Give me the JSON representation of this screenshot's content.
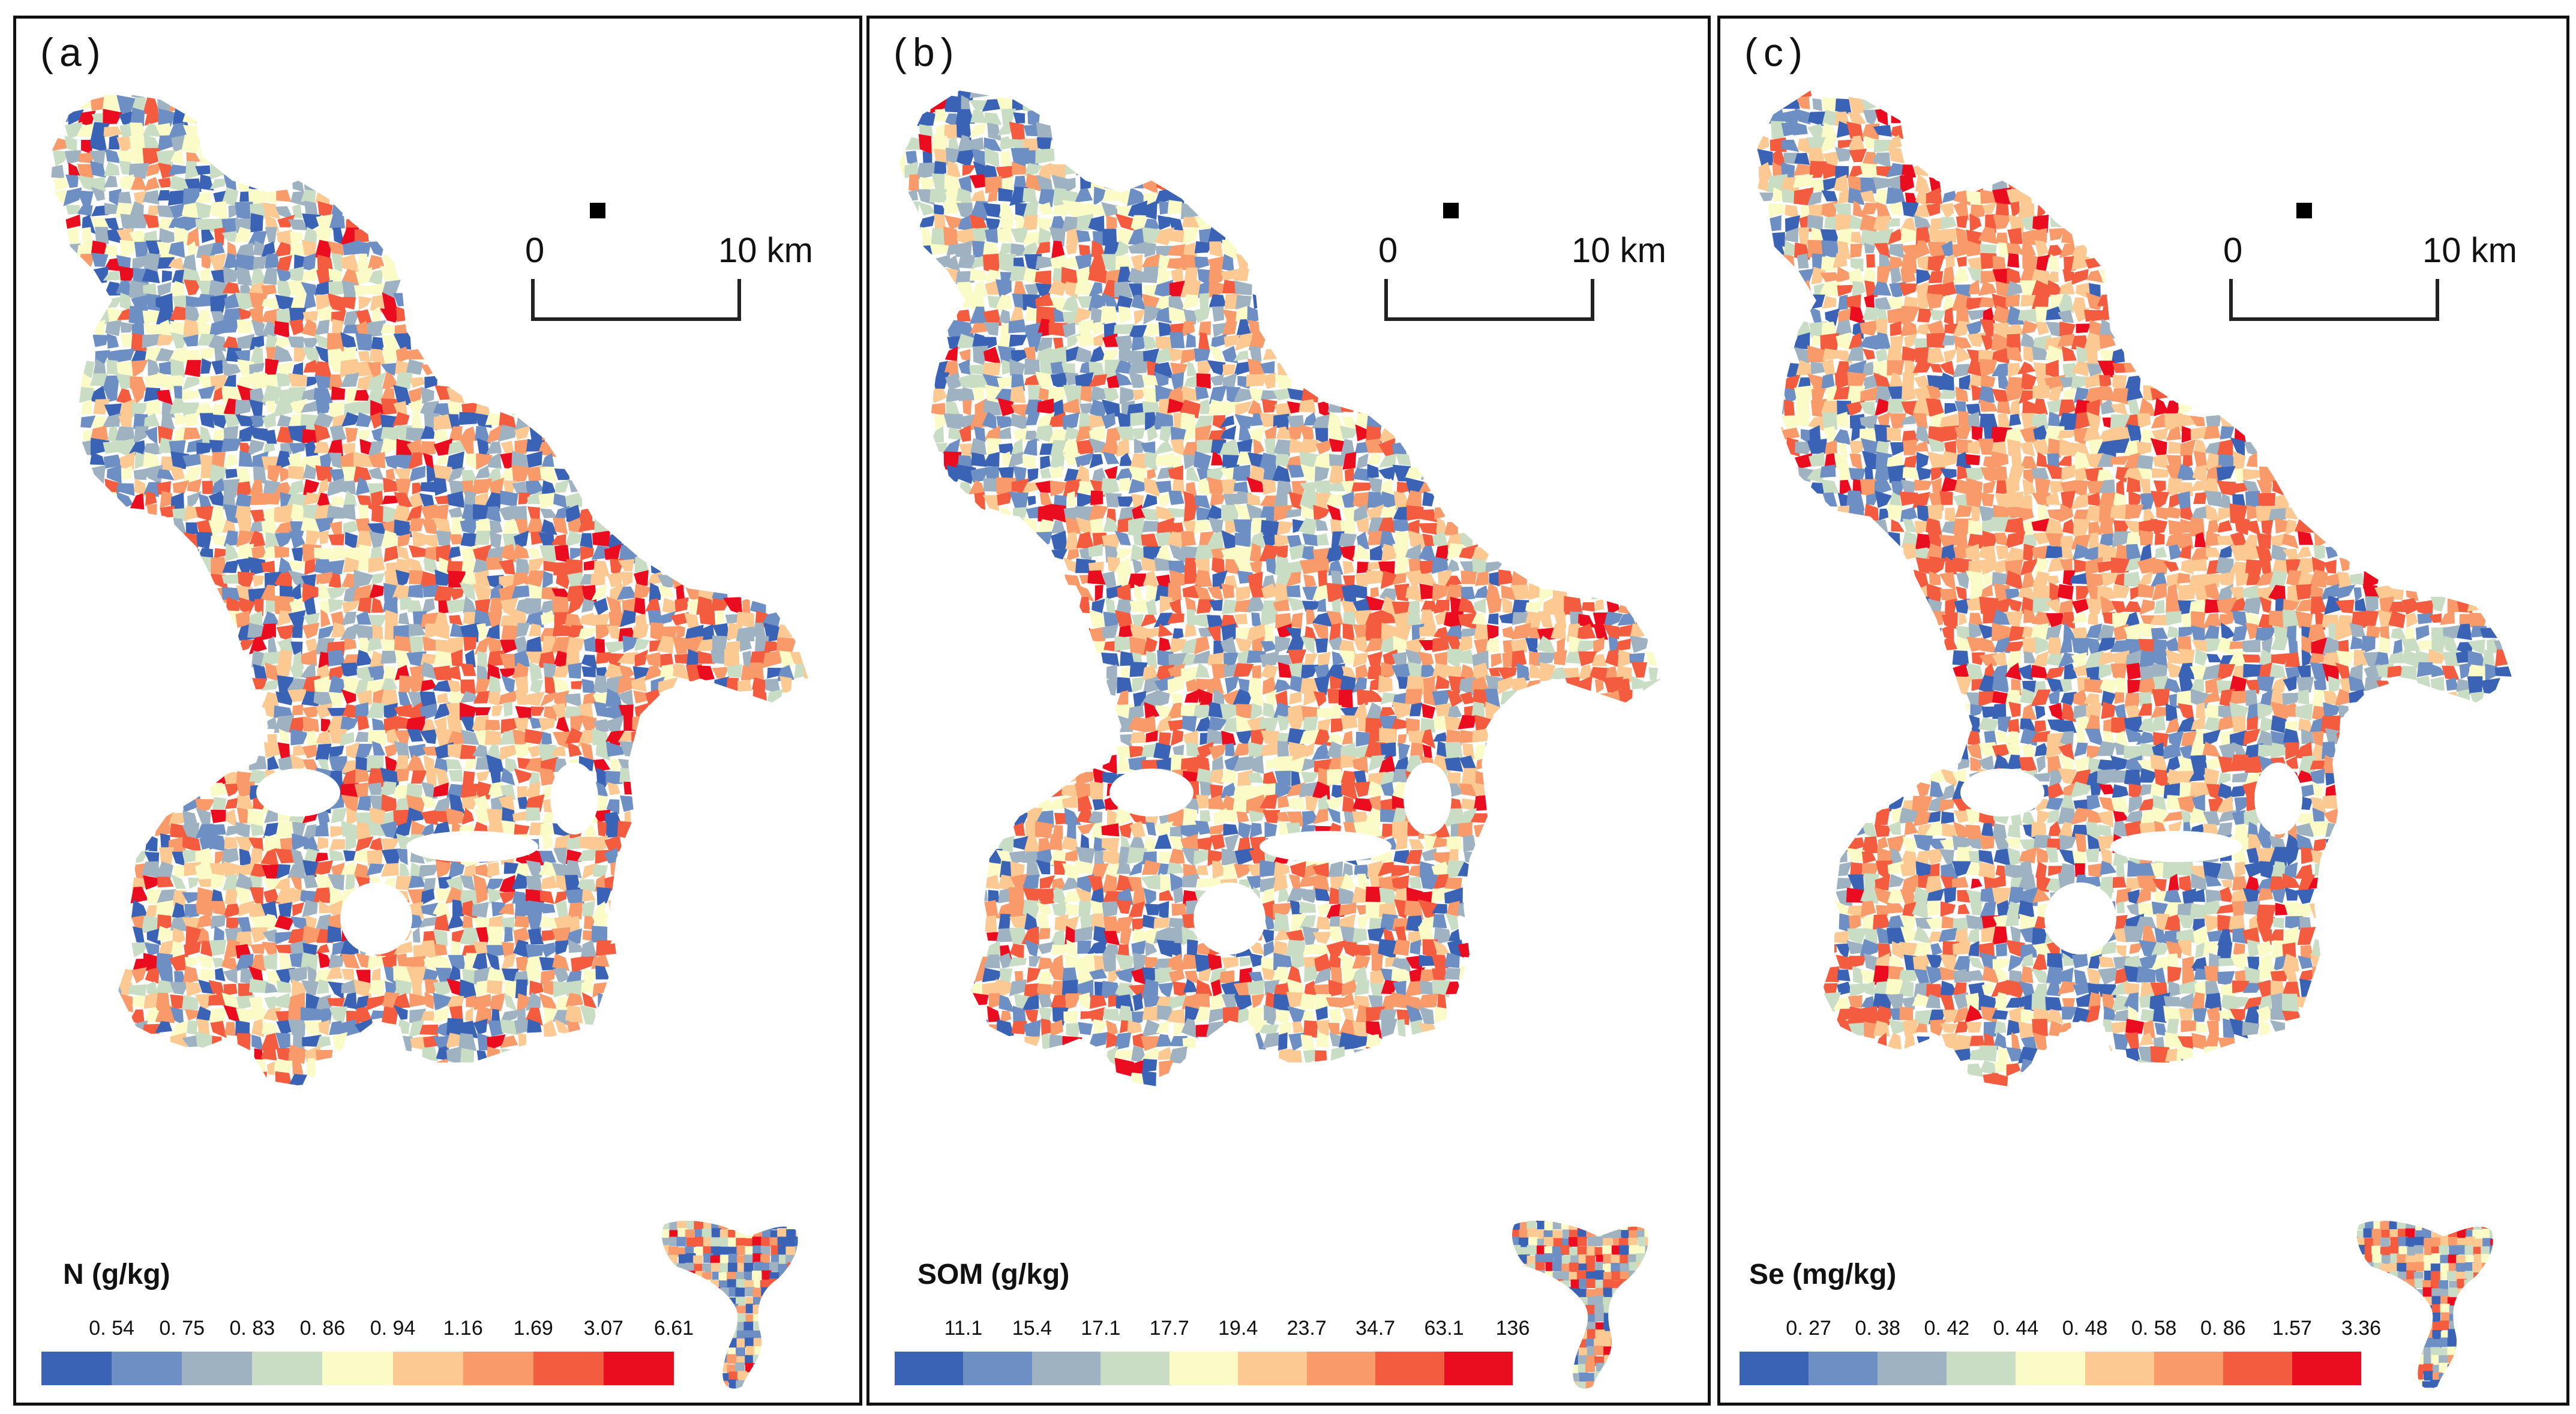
{
  "panels": [
    {
      "label": "(a)",
      "scale": {
        "start": "0",
        "end": "10 km"
      },
      "legend": {
        "title": "N (g/kg)",
        "breaks": [
          "0. 54",
          "0. 75",
          "0. 83",
          "0. 86",
          "0. 94",
          "1.16",
          "1.69",
          "3.07",
          "6.61"
        ]
      },
      "dominant": "mixed"
    },
    {
      "label": "(b)",
      "scale": {
        "start": "0",
        "end": "10 km"
      },
      "legend": {
        "title": "SOM (g/kg)",
        "breaks": [
          "11.1",
          "15.4",
          "17.1",
          "17.7",
          "19.4",
          "23.7",
          "34.7",
          "63.1",
          "136"
        ]
      },
      "dominant": "mixed"
    },
    {
      "label": "(c)",
      "scale": {
        "start": "0",
        "end": "10 km"
      },
      "legend": {
        "title": "Se (mg/kg)",
        "breaks": [
          "0. 27",
          "0. 38",
          "0. 42",
          "0. 44",
          "0. 48",
          "0. 58",
          "0. 86",
          "1.57",
          "3.36"
        ]
      },
      "dominant": "warm-north"
    }
  ],
  "colors": [
    "#3a62b5",
    "#6d8fc4",
    "#9fb2c2",
    "#c9dcc4",
    "#fafbc6",
    "#fcc992",
    "#f89a6a",
    "#f35c3e",
    "#ea0d1f"
  ]
}
